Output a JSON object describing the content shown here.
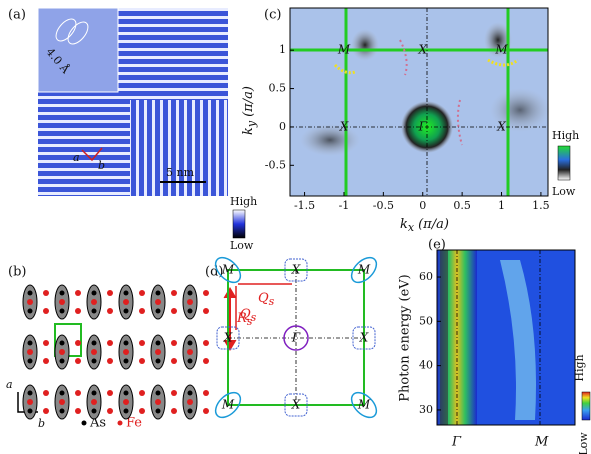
{
  "panels": {
    "a": {
      "label": "(a)",
      "inset_text": "4.0 Å",
      "scale_bar": "5 nm",
      "axis_a": "a",
      "axis_b": "b",
      "cbar_high": "High",
      "cbar_low": "Low"
    },
    "c": {
      "label": "(c)",
      "xlabel": {
        "main": "k",
        "sub": "x",
        "unit": "(π/a)"
      },
      "ylabel": {
        "main": "k",
        "sub": "y",
        "unit": "(π/a)"
      },
      "xlim": [
        -1.685,
        1.59
      ],
      "ylim": [
        -0.9,
        1.55
      ],
      "xticks": [
        -1.5,
        -1.0,
        -0.5,
        0.0,
        0.5,
        1.0,
        1.5
      ],
      "yticks": [
        -0.5,
        0.0,
        0.5,
        1.0
      ],
      "symmetry_labels": [
        "M",
        "X",
        "M",
        "X",
        "Γ",
        "X"
      ],
      "cbar_high": "High",
      "cbar_low": "Low"
    },
    "b": {
      "label": "(b)",
      "rs": {
        "main": "R",
        "sub": "s"
      },
      "axis_a": "a",
      "axis_b": "b",
      "legend_as": "As",
      "legend_fe": "Fe"
    },
    "d": {
      "label": "(d)",
      "symmetry_labels": [
        "M",
        "X",
        "M",
        "X",
        "Γ",
        "X",
        "M",
        "X",
        "M"
      ],
      "q": {
        "main": "Q",
        "sub": "s"
      }
    },
    "e": {
      "label": "(e)",
      "ylabel": "Photon energy (eV)",
      "ylim": [
        26.6,
        66.1
      ],
      "yticks": [
        30,
        40,
        50,
        60
      ],
      "xlabels": [
        "Γ",
        "M"
      ],
      "cbar_high": "High",
      "cbar_low": "Low"
    }
  }
}
